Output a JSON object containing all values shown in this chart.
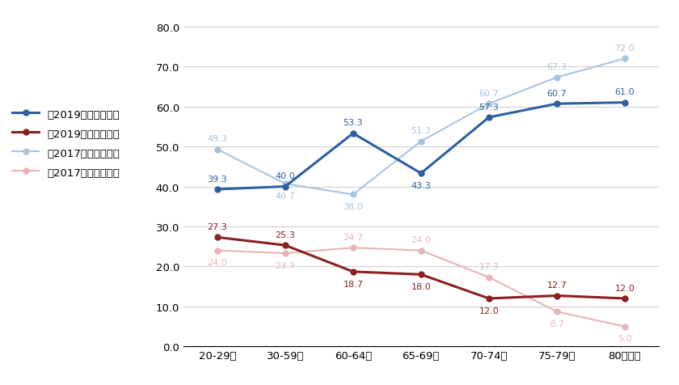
{
  "categories": [
    "20-29歳",
    "30-59歳",
    "60-64歳",
    "65-69歳",
    "70-74歳",
    "75-79歳",
    "80歳以上"
  ],
  "series": [
    {
      "label": "、2019】自信がある",
      "values": [
        39.3,
        40.0,
        53.3,
        43.3,
        57.3,
        60.7,
        61.0
      ],
      "color": "#2E5FA3",
      "marker": "o",
      "linewidth": 2.2,
      "markersize": 5,
      "zorder": 4
    },
    {
      "label": "、2019】自信がない",
      "values": [
        27.3,
        25.3,
        18.7,
        18.0,
        12.0,
        12.7,
        12.0
      ],
      "color": "#8B2020",
      "marker": "o",
      "linewidth": 2.2,
      "markersize": 5,
      "zorder": 4
    },
    {
      "label": "、2017】自信がある",
      "values": [
        49.3,
        40.7,
        38.0,
        51.3,
        60.7,
        67.3,
        72.0
      ],
      "color": "#A8C4E0",
      "marker": "o",
      "linewidth": 1.5,
      "markersize": 5,
      "zorder": 3
    },
    {
      "label": "、2017】自信がない",
      "values": [
        24.0,
        23.3,
        24.7,
        24.0,
        17.3,
        8.7,
        5.0
      ],
      "color": "#E8B4B8",
      "marker": "o",
      "linewidth": 1.5,
      "markersize": 5,
      "zorder": 3
    }
  ],
  "ylim": [
    0,
    82
  ],
  "yticks": [
    0.0,
    10.0,
    20.0,
    30.0,
    40.0,
    50.0,
    60.0,
    70.0,
    80.0
  ],
  "background_color": "#ffffff",
  "grid_color": "#d0d0d0",
  "annotation_fontsize": 8.0,
  "legend_fontsize": 9.5,
  "tick_fontsize": 9.5,
  "annotation_offsets": [
    [
      [
        0,
        6
      ],
      [
        0,
        6
      ],
      [
        0,
        6
      ],
      [
        0,
        -7
      ],
      [
        0,
        6
      ],
      [
        0,
        6
      ],
      [
        0,
        6
      ]
    ],
    [
      [
        0,
        6
      ],
      [
        0,
        6
      ],
      [
        0,
        -7
      ],
      [
        0,
        -7
      ],
      [
        0,
        -7
      ],
      [
        0,
        6
      ],
      [
        0,
        6
      ]
    ],
    [
      [
        0,
        6
      ],
      [
        0,
        -7
      ],
      [
        0,
        -7
      ],
      [
        0,
        6
      ],
      [
        0,
        6
      ],
      [
        0,
        6
      ],
      [
        0,
        6
      ]
    ],
    [
      [
        0,
        -7
      ],
      [
        0,
        -7
      ],
      [
        0,
        6
      ],
      [
        0,
        6
      ],
      [
        0,
        6
      ],
      [
        0,
        -7
      ],
      [
        0,
        -7
      ]
    ]
  ]
}
